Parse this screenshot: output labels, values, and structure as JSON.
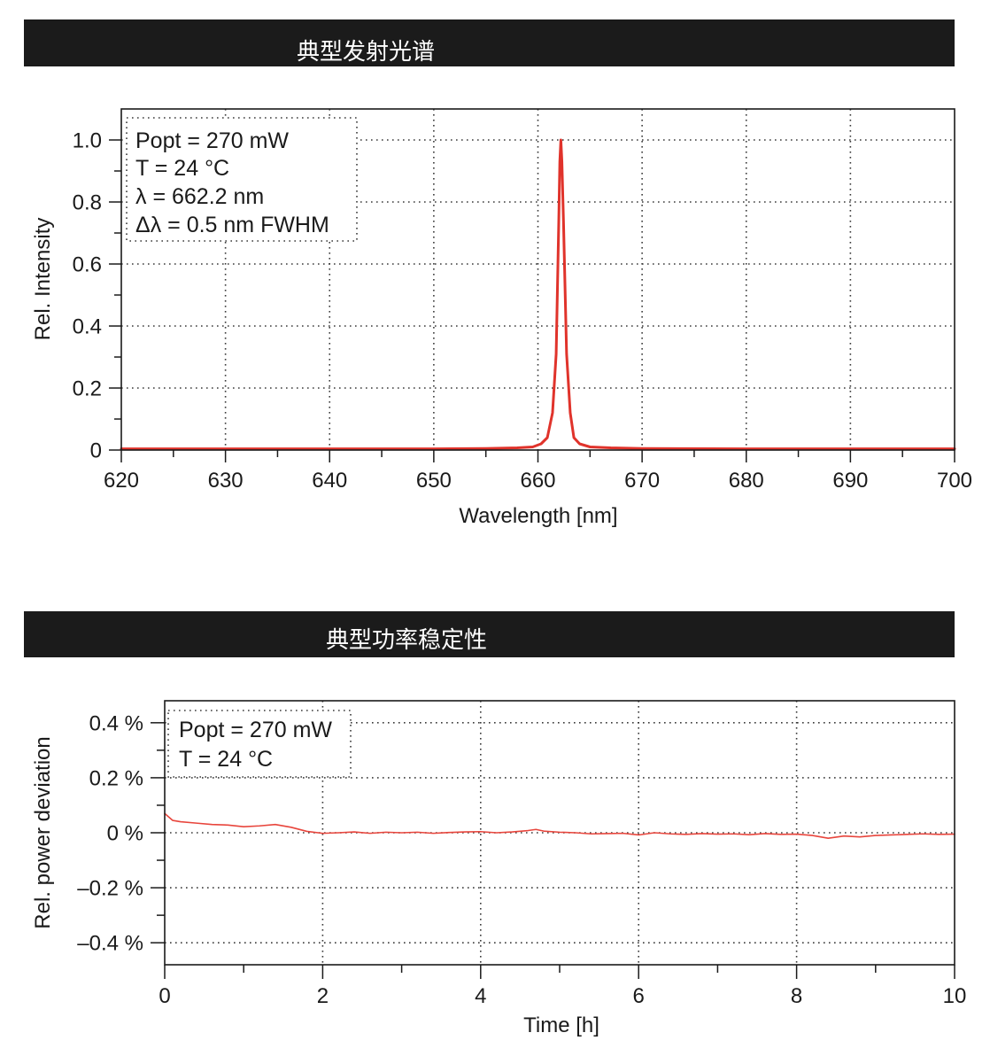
{
  "colors": {
    "header_bar": "#1b1b1b",
    "header_text": "#ffffff"
  },
  "chart_data": [
    {
      "type": "line",
      "title": "典型发射光谱",
      "xlabel": "Wavelength [nm]",
      "ylabel": "Rel. Intensity",
      "xlim": [
        620,
        700
      ],
      "ylim": [
        0,
        1.1
      ],
      "xticks": [
        620,
        630,
        640,
        650,
        660,
        670,
        680,
        690,
        700
      ],
      "xticklabels": [
        "620",
        "630",
        "640",
        "650",
        "660",
        "670",
        "680",
        "690",
        "700"
      ],
      "yticks": [
        0,
        0.2,
        0.4,
        0.6,
        0.8,
        1.0
      ],
      "yticklabels": [
        "0",
        "0.2",
        "0.4",
        "0.6",
        "0.8",
        "1.0"
      ],
      "grid": true,
      "annotation": {
        "placement": "top-left",
        "lines": [
          "Popt = 270 mW",
          "T = 24 °C",
          "λ = 662.2 nm",
          "Δλ = 0.5 nm FWHM"
        ]
      },
      "series": [
        {
          "color": "#e0332b",
          "x": [
            620,
            630,
            640,
            650,
            655,
            658,
            659.5,
            660.3,
            660.9,
            661.4,
            661.75,
            662.0,
            662.1,
            662.2,
            662.3,
            662.45,
            662.75,
            663.1,
            663.45,
            664.0,
            665,
            667,
            670,
            680,
            690,
            700
          ],
          "y": [
            0.004,
            0.004,
            0.004,
            0.004,
            0.005,
            0.007,
            0.01,
            0.02,
            0.04,
            0.12,
            0.31,
            0.74,
            0.93,
            1.0,
            0.93,
            0.74,
            0.31,
            0.12,
            0.04,
            0.02,
            0.01,
            0.007,
            0.005,
            0.004,
            0.004,
            0.004
          ]
        }
      ]
    },
    {
      "type": "line",
      "title": "典型功率稳定性",
      "xlabel": "Time [h]",
      "ylabel": "Rel. power deviation",
      "xlim": [
        0,
        10
      ],
      "ylim": [
        -0.48,
        0.48
      ],
      "xticks": [
        0,
        2,
        4,
        6,
        8,
        10
      ],
      "xticklabels": [
        "0",
        "2",
        "4",
        "6",
        "8",
        "10"
      ],
      "yticks": [
        0.4,
        0.2,
        0,
        -0.2,
        -0.4
      ],
      "yticklabels": [
        "0.4 %",
        "0.2 %",
        "0 %",
        "–0.2 %",
        "–0.4 %"
      ],
      "grid": true,
      "annotation": {
        "placement": "top-left",
        "lines": [
          "Popt = 270 mW",
          "T = 24 °C"
        ]
      },
      "series": [
        {
          "color": "#e8453c",
          "x": [
            0,
            0.1,
            0.2,
            0.4,
            0.6,
            0.8,
            1.0,
            1.2,
            1.4,
            1.6,
            1.8,
            2.0,
            2.2,
            2.4,
            2.6,
            2.8,
            3.0,
            3.2,
            3.4,
            3.6,
            3.8,
            4.0,
            4.2,
            4.4,
            4.6,
            4.7,
            4.8,
            5.0,
            5.2,
            5.4,
            5.6,
            5.8,
            6.0,
            6.2,
            6.4,
            6.6,
            6.8,
            7.0,
            7.2,
            7.4,
            7.6,
            7.8,
            8.0,
            8.2,
            8.4,
            8.6,
            8.8,
            9.0,
            9.2,
            9.4,
            9.6,
            9.8,
            10.0
          ],
          "y": [
            0.07,
            0.045,
            0.04,
            0.035,
            0.03,
            0.028,
            0.022,
            0.025,
            0.03,
            0.02,
            0.005,
            -0.002,
            0.0,
            0.003,
            -0.002,
            0.002,
            0.0,
            0.002,
            -0.002,
            0.001,
            0.003,
            0.004,
            0.0,
            0.003,
            0.008,
            0.012,
            0.006,
            0.002,
            0.0,
            -0.004,
            -0.003,
            -0.002,
            -0.008,
            0.0,
            -0.004,
            -0.006,
            -0.003,
            -0.005,
            -0.004,
            -0.007,
            -0.003,
            -0.006,
            -0.005,
            -0.01,
            -0.02,
            -0.012,
            -0.015,
            -0.01,
            -0.008,
            -0.006,
            -0.004,
            -0.006,
            -0.005
          ]
        }
      ]
    }
  ]
}
